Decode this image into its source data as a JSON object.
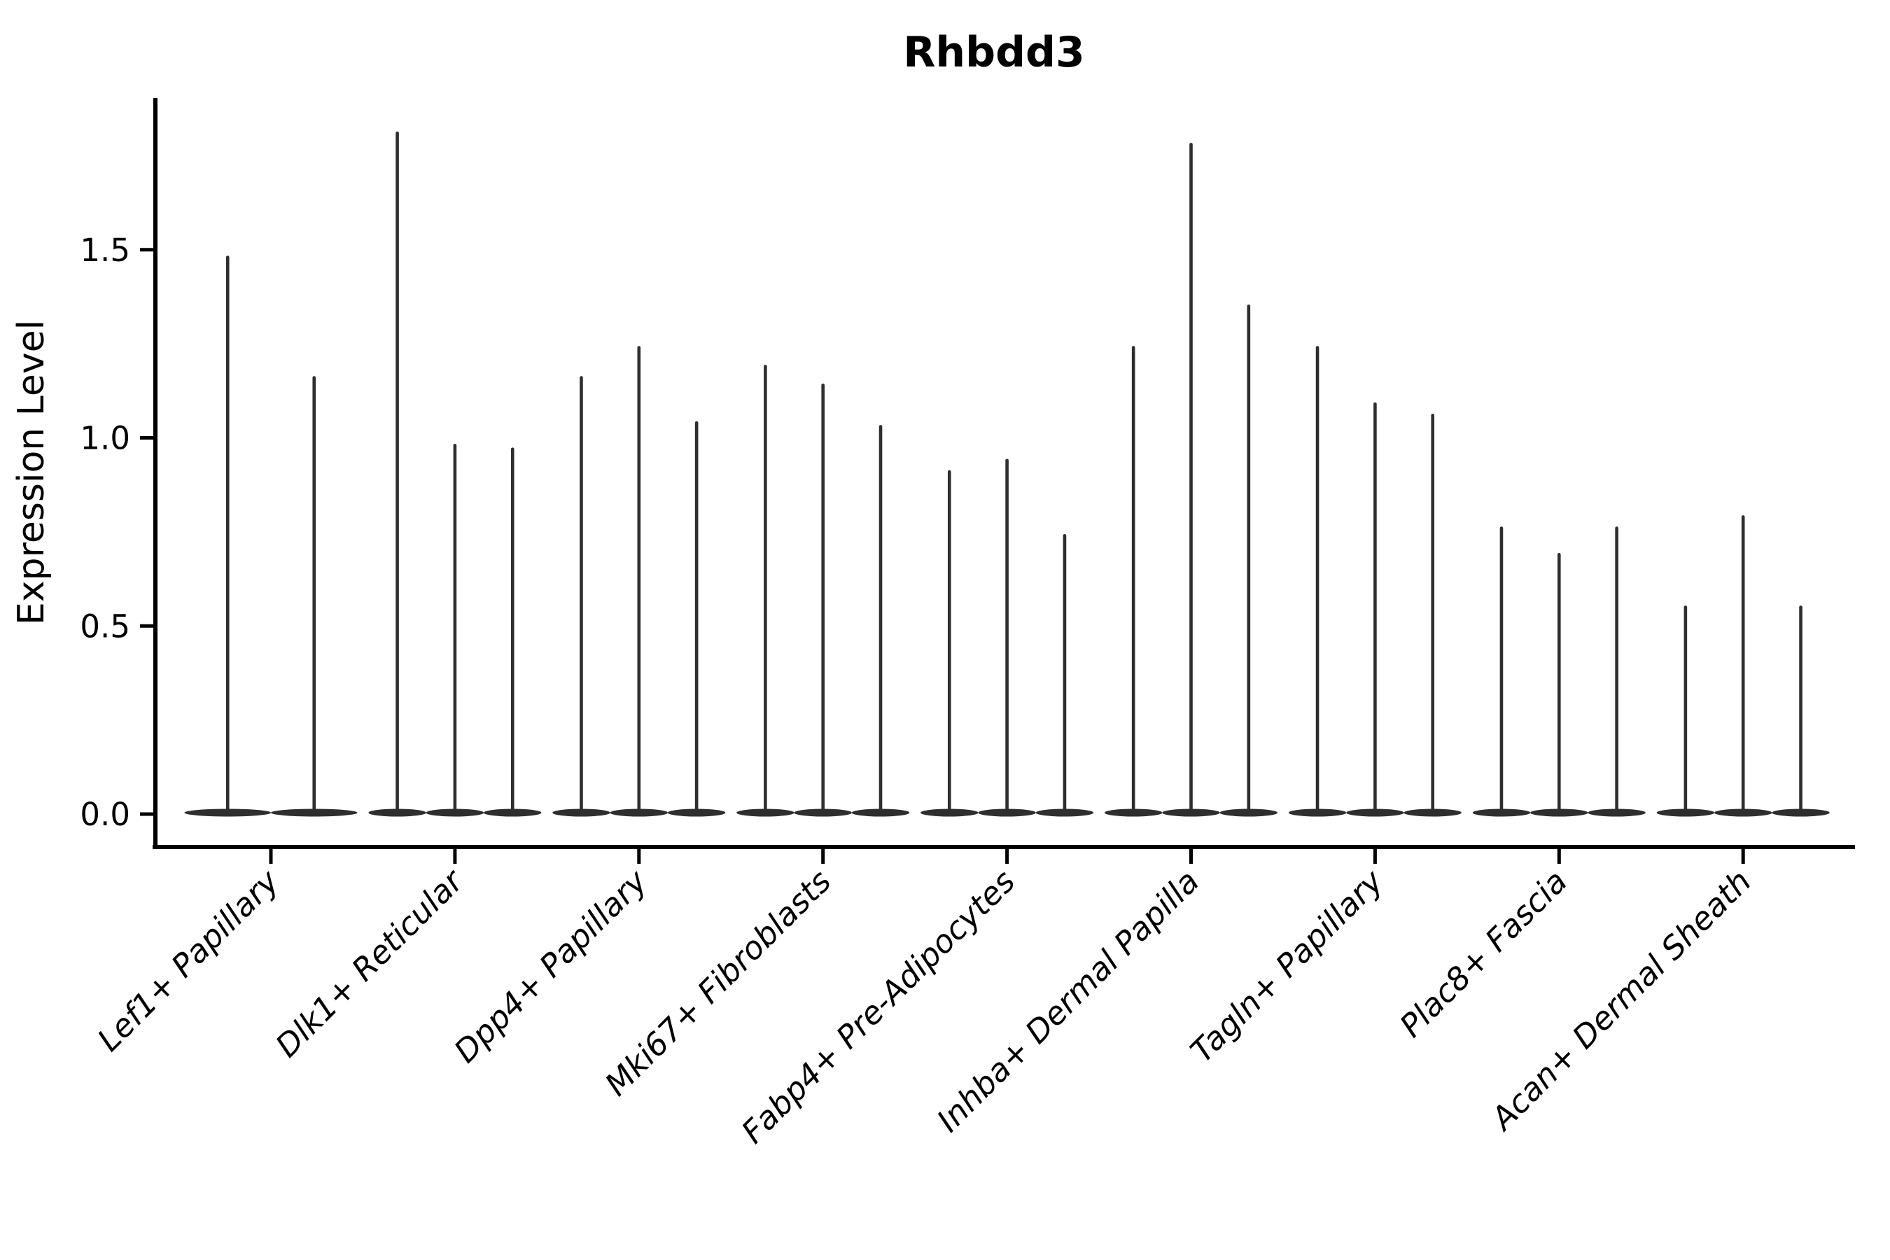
{
  "chart_data": {
    "type": "violin",
    "title": "Rhbdd3",
    "xlabel": "",
    "ylabel": "Expression Level",
    "ylim": [
      -0.09,
      1.9
    ],
    "grid": false,
    "legend": false,
    "yticks": [
      0.0,
      0.5,
      1.0,
      1.5
    ],
    "ytick_labels": [
      "0.0",
      "0.5",
      "1.0",
      "1.5"
    ],
    "violin_color": "#2e2e2e",
    "axis_color": "#000000",
    "note": "Each category shows narrow violin spikes rising from a wide base at expression 0; values are the maximum expression reached by each violin.",
    "groups": [
      {
        "label": "Lef1+ Papillary",
        "violin_maxima": [
          1.48,
          1.16
        ]
      },
      {
        "label": "Dlk1+ Reticular",
        "violin_maxima": [
          1.81,
          0.98,
          0.97
        ]
      },
      {
        "label": "Dpp4+ Papillary",
        "violin_maxima": [
          1.16,
          1.24,
          1.04
        ]
      },
      {
        "label": "Mki67+ Fibroblasts",
        "violin_maxima": [
          1.19,
          1.14,
          1.03
        ]
      },
      {
        "label": "Fabp4+ Pre-Adipocytes",
        "violin_maxima": [
          0.91,
          0.94,
          0.74
        ]
      },
      {
        "label": "Inhba+ Dermal Papilla",
        "violin_maxima": [
          1.24,
          1.78,
          1.35
        ]
      },
      {
        "label": "Tagln+ Papillary",
        "violin_maxima": [
          1.24,
          1.09,
          1.06
        ]
      },
      {
        "label": "Plac8+ Fascia",
        "violin_maxima": [
          0.76,
          0.69,
          0.76
        ]
      },
      {
        "label": "Acan+ Dermal Sheath",
        "violin_maxima": [
          0.55,
          0.79,
          0.55
        ]
      }
    ]
  }
}
